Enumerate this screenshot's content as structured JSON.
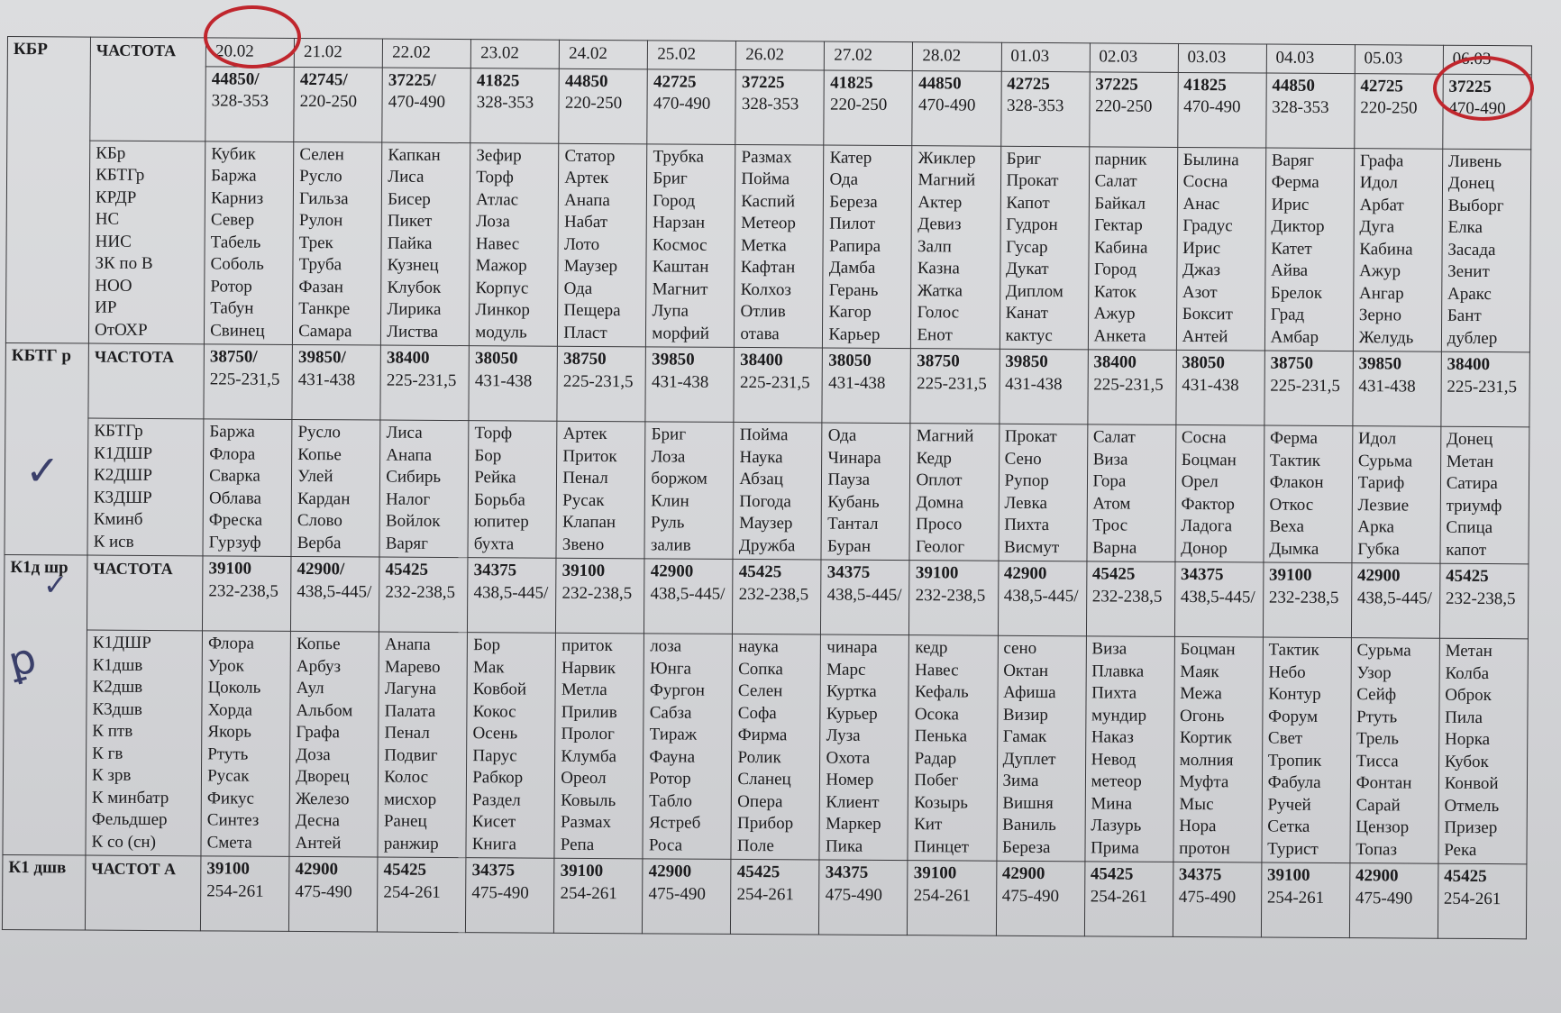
{
  "dates": [
    "20.02",
    "21.02",
    "22.02",
    "23.02",
    "24.02",
    "25.02",
    "26.02",
    "27.02",
    "28.02",
    "01.03",
    "02.03",
    "03.03",
    "04.03",
    "05.03",
    "06.03"
  ],
  "blocks": [
    {
      "station": "КБР",
      "freq_label": "ЧАСТОТА",
      "freqs": [
        [
          "44850/",
          "328-353"
        ],
        [
          "42745/",
          "220-250"
        ],
        [
          "37225/",
          "470-490"
        ],
        [
          "41825",
          "328-353"
        ],
        [
          "44850",
          "220-250"
        ],
        [
          "42725",
          "470-490"
        ],
        [
          "37225",
          "328-353"
        ],
        [
          "41825",
          "220-250"
        ],
        [
          "44850",
          "470-490"
        ],
        [
          "42725",
          "328-353"
        ],
        [
          "37225",
          "220-250"
        ],
        [
          "41825",
          "470-490"
        ],
        [
          "44850",
          "328-353"
        ],
        [
          "42725",
          "220-250"
        ],
        [
          "37225",
          "470-490"
        ]
      ],
      "call_labels": [
        "КБр",
        "КБТГр",
        "КРДР",
        "НС",
        "НИС",
        "ЗК по В",
        "НОО",
        "ИР",
        "ОтОХР"
      ],
      "calls": [
        [
          "Кубик",
          "Баржа",
          "Карниз",
          "Север",
          "Табель",
          "Соболь",
          "Ротор",
          "Табун",
          "Свинец"
        ],
        [
          "Селен",
          "Русло",
          "Гильза",
          "Рулон",
          "Трек",
          "Труба",
          "Фазан",
          "Танкре",
          "Самара"
        ],
        [
          "Капкан",
          "Лиса",
          "Бисер",
          "Пикет",
          "Пайка",
          "Кузнец",
          "Клубок",
          "Лирика",
          "Листва"
        ],
        [
          "Зефир",
          "Торф",
          "Атлас",
          "Лоза",
          "Навес",
          "Мажор",
          "Корпус",
          "Линкор",
          "модуль"
        ],
        [
          "Статор",
          "Артек",
          "Анапа",
          "Набат",
          "Лото",
          "Маузер",
          "Ода",
          "Пещера",
          "Пласт"
        ],
        [
          "Трубка",
          "Бриг",
          "Город",
          "Нарзан",
          "Космос",
          "Каштан",
          "Магнит",
          "Лупа",
          "морфий"
        ],
        [
          "Размах",
          "Пойма",
          "Каспий",
          "Метеор",
          "Метка",
          "Кафтан",
          "Колхоз",
          "Отлив",
          "отава"
        ],
        [
          "Катер",
          "Ода",
          "Береза",
          "Пилот",
          "Рапира",
          "Дамба",
          "Герань",
          "Кагор",
          "Карьер"
        ],
        [
          "Жиклер",
          "Магний",
          "Актер",
          "Девиз",
          "Залп",
          "Казна",
          "Жатка",
          "Голос",
          "Енот"
        ],
        [
          "Бриг",
          "Прокат",
          "Капот",
          "Гудрон",
          "Гусар",
          "Дукат",
          "Диплом",
          "Канат",
          "кактус"
        ],
        [
          "парник",
          "Салат",
          "Байкал",
          "Гектар",
          "Кабина",
          "Город",
          "Каток",
          "Ажур",
          "Анкета"
        ],
        [
          "Былина",
          "Сосна",
          "Анас",
          "Градус",
          "Ирис",
          "Джаз",
          "Азот",
          "Боксит",
          "Антей"
        ],
        [
          "Варяг",
          "Ферма",
          "Ирис",
          "Диктор",
          "Катет",
          "Айва",
          "Брелок",
          "Град",
          "Амбар"
        ],
        [
          "Графа",
          "Идол",
          "Арбат",
          "Дуга",
          "Кабина",
          "Ажур",
          "Ангар",
          "Зерно",
          "Желудь"
        ],
        [
          "Ливень",
          "Донец",
          "Выборг",
          "Елка",
          "Засада",
          "Зенит",
          "Аракс",
          "Бант",
          "дублер"
        ]
      ]
    },
    {
      "station": "КБТГ р",
      "freq_label": "ЧАСТОТА",
      "freqs": [
        [
          "38750/",
          "225-231,5"
        ],
        [
          "39850/",
          "431-438"
        ],
        [
          "38400",
          "225-231,5"
        ],
        [
          "38050",
          "431-438"
        ],
        [
          "38750",
          "225-231,5"
        ],
        [
          "39850",
          "431-438"
        ],
        [
          "38400",
          "225-231,5"
        ],
        [
          "38050",
          "431-438"
        ],
        [
          "38750",
          "225-231,5"
        ],
        [
          "39850",
          "431-438"
        ],
        [
          "38400",
          "225-231,5"
        ],
        [
          "38050",
          "431-438"
        ],
        [
          "38750",
          "225-231,5"
        ],
        [
          "39850",
          "431-438"
        ],
        [
          "38400",
          "225-231,5"
        ]
      ],
      "call_labels": [
        "КБТГр",
        "К1ДШР",
        "К2ДШР",
        "К3ДШР",
        "Кминб",
        "К исв"
      ],
      "calls": [
        [
          "Баржа",
          "Флора",
          "Сварка",
          "Облава",
          "Фреска",
          "Гурзуф"
        ],
        [
          "Русло",
          "Копье",
          "Улей",
          "Кардан",
          "Слово",
          "Верба"
        ],
        [
          "Лиса",
          "Анапа",
          "Сибирь",
          "Налог",
          "Войлок",
          "Варяг"
        ],
        [
          "Торф",
          "Бор",
          "Рейка",
          "Борьба",
          "юпитер",
          "бухта"
        ],
        [
          "Артек",
          "Приток",
          "Пенал",
          "Русак",
          "Клапан",
          "Звено"
        ],
        [
          "Бриг",
          "Лоза",
          "боржом",
          "Клин",
          "Руль",
          "залив"
        ],
        [
          "Пойма",
          "Наука",
          "Абзац",
          "Погода",
          "Маузер",
          "Дружба"
        ],
        [
          "Ода",
          "Чинара",
          "Пауза",
          "Кубань",
          "Тантал",
          "Буран"
        ],
        [
          "Магний",
          "Кедр",
          "Оплот",
          "Домна",
          "Просо",
          "Геолог"
        ],
        [
          "Прокат",
          "Сено",
          "Рупор",
          "Левка",
          "Пихта",
          "Висмут"
        ],
        [
          "Салат",
          "Виза",
          "Гора",
          "Атом",
          "Трос",
          "Варна"
        ],
        [
          "Сосна",
          "Боцман",
          "Орел",
          "Фактор",
          "Ладога",
          "Донор"
        ],
        [
          "Ферма",
          "Тактик",
          "Флакон",
          "Откос",
          "Веха",
          "Дымка"
        ],
        [
          "Идол",
          "Сурьма",
          "Тариф",
          "Лезвие",
          "Арка",
          "Губка"
        ],
        [
          "Донец",
          "Метан",
          "Сатира",
          "триумф",
          "Спица",
          "капот"
        ]
      ]
    },
    {
      "station": "К1д шр",
      "freq_label": "ЧАСТОТА",
      "freqs": [
        [
          "39100",
          "232-238,5"
        ],
        [
          "42900/",
          "438,5-445/"
        ],
        [
          "45425",
          "232-238,5"
        ],
        [
          "34375",
          "438,5-445/"
        ],
        [
          "39100",
          "232-238,5"
        ],
        [
          "42900",
          "438,5-445/"
        ],
        [
          "45425",
          "232-238,5"
        ],
        [
          "34375",
          "438,5-445/"
        ],
        [
          "39100",
          "232-238,5"
        ],
        [
          "42900",
          "438,5-445/"
        ],
        [
          "45425",
          "232-238,5"
        ],
        [
          "34375",
          "438,5-445/"
        ],
        [
          "39100",
          "232-238,5"
        ],
        [
          "42900",
          "438,5-445/"
        ],
        [
          "45425",
          "232-238,5"
        ]
      ],
      "call_labels": [
        "К1ДШР",
        "К1дшв",
        "К2дшв",
        "К3дшв",
        "К птв",
        "К гв",
        "К зрв",
        "К минбатр",
        "Фельдшер",
        "К со (сн)"
      ],
      "calls": [
        [
          "Флора",
          "Урок",
          "Цоколь",
          "Хорда",
          "Якорь",
          "Ртуть",
          "Русак",
          "Фикус",
          "Синтез",
          "Смета"
        ],
        [
          "Копье",
          "Арбуз",
          "Аул",
          "Альбом",
          "Графа",
          "Доза",
          "Дворец",
          "Железо",
          "Десна",
          "Антей"
        ],
        [
          "Анапа",
          "Марево",
          "Лагуна",
          "Палата",
          "Пенал",
          "Подвиг",
          "Колос",
          "мисхор",
          "Ранец",
          "ранжир"
        ],
        [
          "Бор",
          "Мак",
          "Ковбой",
          "Кокос",
          "Осень",
          "Парус",
          "Рабкор",
          "Раздел",
          "Кисет",
          "Книга"
        ],
        [
          "приток",
          "Нарвик",
          "Метла",
          "Прилив",
          "Пролог",
          "Клумба",
          "Ореол",
          "Ковыль",
          "Размах",
          "Репа"
        ],
        [
          "лоза",
          "Юнга",
          "Фургон",
          "Сабза",
          "Тираж",
          "Фауна",
          "Ротор",
          "Табло",
          "Ястреб",
          "Роса"
        ],
        [
          "наука",
          "Сопка",
          "Селен",
          "Софа",
          "Фирма",
          "Ролик",
          "Сланец",
          "Опера",
          "Прибор",
          "Поле"
        ],
        [
          "чинара",
          "Марс",
          "Куртка",
          "Курьер",
          "Луза",
          "Охота",
          "Номер",
          "Клиент",
          "Маркер",
          "Пика"
        ],
        [
          "кедр",
          "Навес",
          "Кефаль",
          "Осока",
          "Пенька",
          "Радар",
          "Побег",
          "Козырь",
          "Кит",
          "Пинцет"
        ],
        [
          "сено",
          "Октан",
          "Афиша",
          "Визир",
          "Гамак",
          "Дуплет",
          "Зима",
          "Вишня",
          "Ваниль",
          "Береза"
        ],
        [
          "Виза",
          "Плавка",
          "Пихта",
          "мундир",
          "Наказ",
          "Невод",
          "метеор",
          "Мина",
          "Лазурь",
          "Прима"
        ],
        [
          "Боцман",
          "Маяк",
          "Межа",
          "Огонь",
          "Кортик",
          "молния",
          "Муфта",
          "Мыс",
          "Нора",
          "протон"
        ],
        [
          "Тактик",
          "Небо",
          "Контур",
          "Форум",
          "Свет",
          "Тропик",
          "Фабула",
          "Ручей",
          "Сетка",
          "Турист"
        ],
        [
          "Сурьма",
          "Узор",
          "Сейф",
          "Ртуть",
          "Трель",
          "Тисса",
          "Фонтан",
          "Сарай",
          "Цензор",
          "Топаз"
        ],
        [
          "Метан",
          "Колба",
          "Оброк",
          "Пила",
          "Норка",
          "Кубок",
          "Конвой",
          "Отмель",
          "Призер",
          "Река"
        ]
      ]
    },
    {
      "station": "К1 дшв",
      "freq_label": "ЧАСТОТ А",
      "freqs": [
        [
          "39100",
          "254-261"
        ],
        [
          "42900",
          "475-490"
        ],
        [
          "45425",
          "254-261"
        ],
        [
          "34375",
          "475-490"
        ],
        [
          "39100",
          "254-261"
        ],
        [
          "42900",
          "475-490"
        ],
        [
          "45425",
          "254-261"
        ],
        [
          "34375",
          "475-490"
        ],
        [
          "39100",
          "254-261"
        ],
        [
          "42900",
          "475-490"
        ],
        [
          "45425",
          "254-261"
        ],
        [
          "34375",
          "475-490"
        ],
        [
          "39100",
          "254-261"
        ],
        [
          "42900",
          "475-490"
        ],
        [
          "45425",
          "254-261"
        ]
      ],
      "call_labels": [],
      "calls": []
    }
  ],
  "annotations": {
    "circle_color": "#c0262d",
    "circled_dates": [
      "20.02",
      "06.03"
    ],
    "handwritten_marks": [
      "checkmark-icon",
      "checkmark-icon",
      "signature-icon"
    ]
  }
}
